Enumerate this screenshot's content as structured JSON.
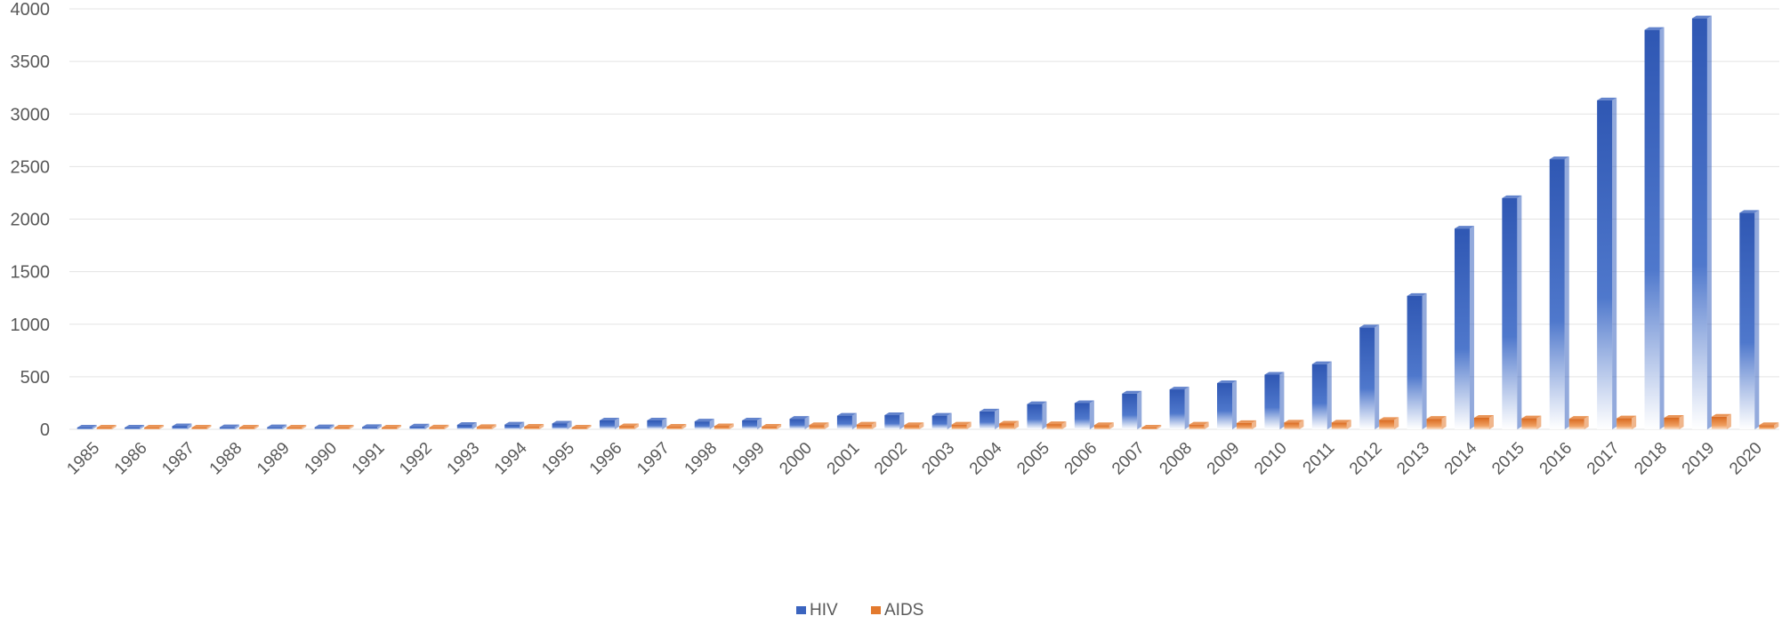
{
  "chart_data": {
    "type": "bar",
    "title": "",
    "xlabel": "",
    "ylabel": "",
    "ylim": [
      0,
      4000
    ],
    "yticks": [
      0,
      500,
      1000,
      1500,
      2000,
      2500,
      3000,
      3500,
      4000
    ],
    "grid": true,
    "legend_position": "bottom",
    "categories": [
      "1985",
      "1986",
      "1987",
      "1988",
      "1989",
      "1990",
      "1991",
      "1992",
      "1993",
      "1994",
      "1995",
      "1996",
      "1997",
      "1998",
      "1999",
      "2000",
      "2001",
      "2002",
      "2003",
      "2004",
      "2005",
      "2006",
      "2007",
      "2008",
      "2009",
      "2010",
      "2011",
      "2012",
      "2013",
      "2014",
      "2015",
      "2016",
      "2017",
      "2018",
      "2019",
      "2020"
    ],
    "series": [
      {
        "name": "HIV",
        "color": "#3b64bf",
        "values": [
          8,
          5,
          30,
          20,
          20,
          20,
          22,
          28,
          42,
          45,
          55,
          85,
          85,
          75,
          85,
          100,
          130,
          135,
          130,
          170,
          240,
          250,
          340,
          380,
          440,
          520,
          620,
          970,
          1270,
          1910,
          2200,
          2570,
          3130,
          3800,
          3910,
          2060
        ]
      },
      {
        "name": "AIDS",
        "color": "#e37a2e",
        "values": [
          3,
          3,
          8,
          6,
          8,
          8,
          15,
          18,
          22,
          25,
          15,
          30,
          25,
          30,
          25,
          40,
          45,
          40,
          45,
          55,
          50,
          40,
          15,
          45,
          60,
          65,
          65,
          90,
          100,
          110,
          105,
          100,
          105,
          110,
          120,
          40
        ]
      }
    ]
  }
}
